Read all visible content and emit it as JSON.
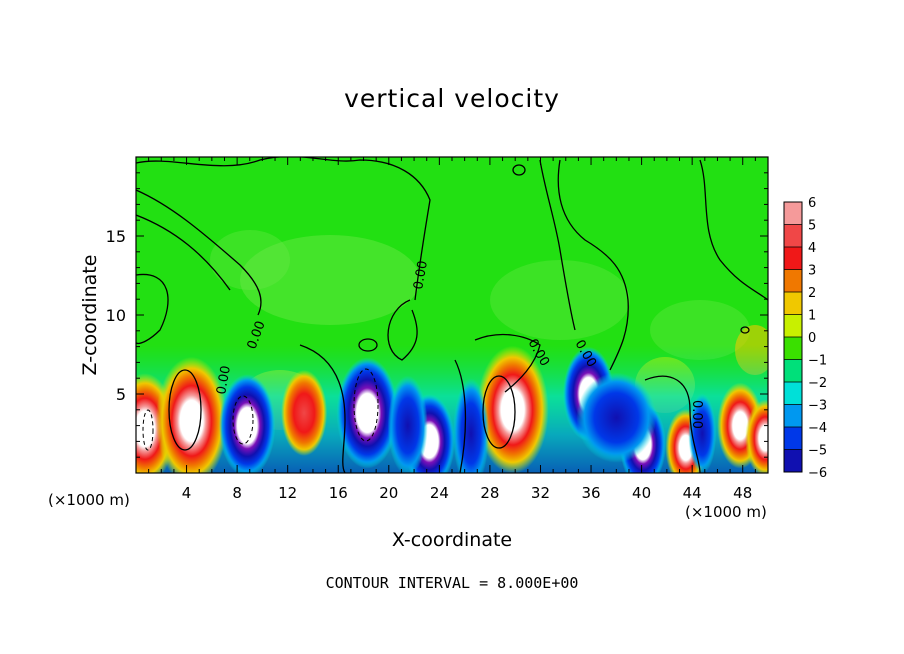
{
  "title": "vertical velocity",
  "footer": "CONTOUR INTERVAL = 8.000E+00",
  "chart_data": {
    "type": "heatmap",
    "title": "vertical velocity",
    "xlabel": "X-coordinate",
    "ylabel": "Z-coordinate",
    "x_unit_label": "(×1000 m)",
    "x_ticks": [
      4,
      8,
      12,
      16,
      20,
      24,
      28,
      32,
      36,
      40,
      44,
      48
    ],
    "y_ticks": [
      5,
      10,
      15
    ],
    "xlim": [
      0,
      50
    ],
    "ylim": [
      0,
      20
    ],
    "colorbar": {
      "levels": [
        6,
        5,
        4,
        3,
        2,
        1,
        0,
        -1,
        -2,
        -3,
        -4,
        -5,
        -6
      ],
      "colors": [
        "#f59a9a",
        "#f04747",
        "#f01818",
        "#f07800",
        "#f0c800",
        "#c8f000",
        "#3ae000",
        "#00e07a",
        "#00e0d8",
        "#0098f0",
        "#0038e8",
        "#1010b0",
        "#7a10b8"
      ]
    },
    "contour_labels": [
      "0.00",
      "0.00",
      "0.00",
      "0.00",
      "0.00",
      "0.00"
    ],
    "background_color": "#22e012",
    "updraft_cells": [
      {
        "x": 0.7,
        "z": 2.8,
        "w": 8
      },
      {
        "x": 4.4,
        "z": 3.3,
        "w": 10
      },
      {
        "x": 8.8,
        "z": 3.0,
        "w": 7
      },
      {
        "x": 13.3,
        "z": 3.8,
        "w": 5
      },
      {
        "x": 18.3,
        "z": 3.8,
        "w": 8
      },
      {
        "x": 23.2,
        "z": 2.0,
        "w": 6
      },
      {
        "x": 29.8,
        "z": 4.0,
        "w": 10
      },
      {
        "x": 35.8,
        "z": 5.0,
        "w": 6
      },
      {
        "x": 40.1,
        "z": 1.8,
        "w": 5
      },
      {
        "x": 43.5,
        "z": 1.6,
        "w": 4
      },
      {
        "x": 47.8,
        "z": 3.0,
        "w": 5
      },
      {
        "x": 49.8,
        "z": 2.2,
        "w": 4
      }
    ]
  }
}
